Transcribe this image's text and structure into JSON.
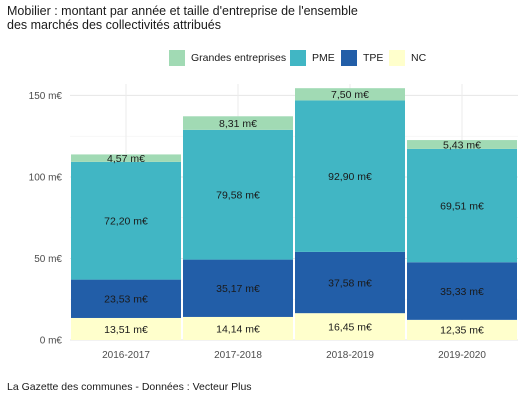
{
  "chart_data": {
    "type": "bar",
    "stacked": true,
    "title": "Mobilier : montant par année et taille d'entreprise de l'ensemble",
    "subtitle": "des marchés des collectivités attribués",
    "categories": [
      "2016-2017",
      "2017-2018",
      "2018-2019",
      "2019-2020"
    ],
    "series": [
      {
        "name": "NC",
        "color": "#ffffcc",
        "values": [
          13.51,
          14.14,
          16.45,
          12.35
        ],
        "labels": [
          "13,51 m€",
          "14,14 m€",
          "16,45 m€",
          "12,35 m€"
        ]
      },
      {
        "name": "TPE",
        "color": "#225ea8",
        "values": [
          23.53,
          35.17,
          37.58,
          35.33
        ],
        "labels": [
          "23,53 m€",
          "35,17 m€",
          "37,58 m€",
          "35,33 m€"
        ]
      },
      {
        "name": "PME",
        "color": "#41b6c4",
        "values": [
          72.2,
          79.58,
          92.9,
          69.51
        ],
        "labels": [
          "72,20 m€",
          "79,58 m€",
          "92,90 m€",
          "69,51 m€"
        ]
      },
      {
        "name": "Grandes entreprises",
        "color": "#a1dab4",
        "values": [
          4.57,
          8.31,
          7.5,
          5.43
        ],
        "labels": [
          "4,57 m€",
          "8,31 m€",
          "7,50 m€",
          "5,43 m€"
        ]
      }
    ],
    "legend_order": [
      "Grandes entreprises",
      "PME",
      "TPE",
      "NC"
    ],
    "legend_position": "top",
    "ylim": [
      0,
      157
    ],
    "yticks": [
      0,
      50,
      100,
      150
    ],
    "ytick_labels": [
      "0 m€",
      "50 m€",
      "100 m€",
      "150 m€"
    ],
    "grid": true
  },
  "caption": "La Gazette des communes - Données : Vecteur Plus"
}
